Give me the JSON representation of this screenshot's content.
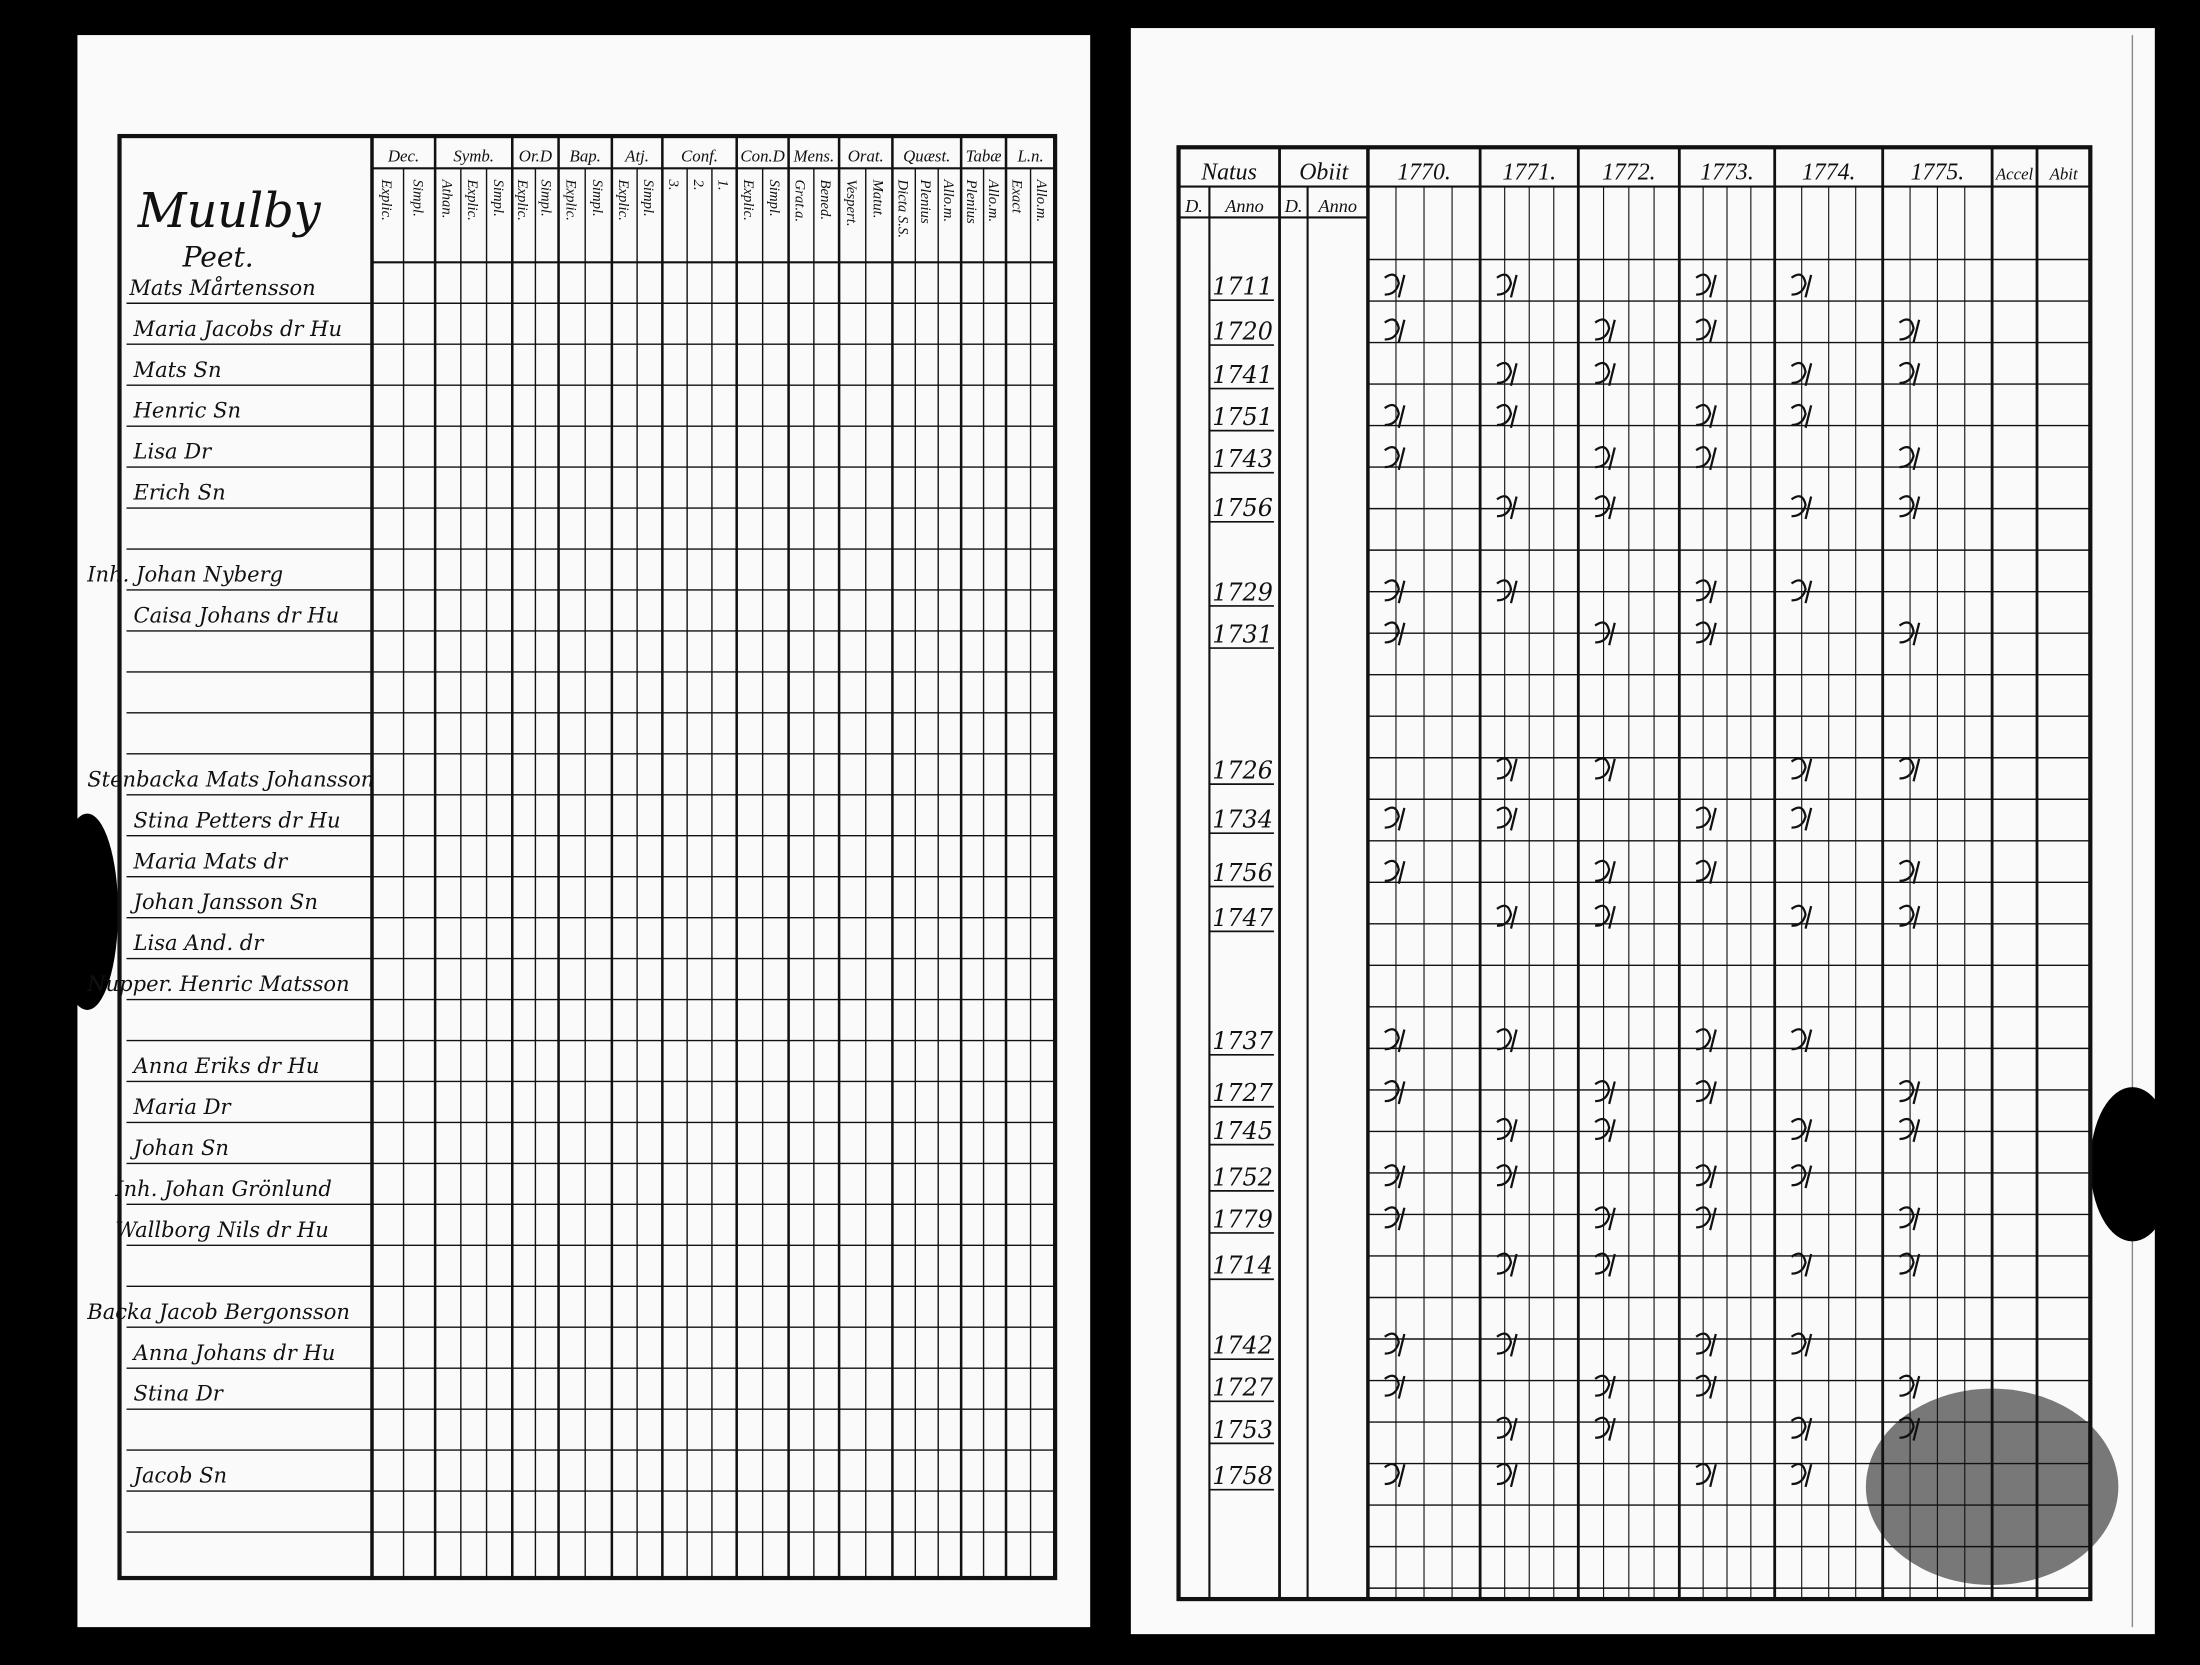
{
  "left_page": {
    "place": "Muulby",
    "village": "Peet.",
    "columns": [
      {
        "title": "Dec.",
        "sub": [
          "Explic.",
          "Simpl."
        ]
      },
      {
        "title": "Symb.",
        "sub": [
          "Athan.",
          "Explic.",
          "Simpl."
        ]
      },
      {
        "title": "Or.D",
        "sub": [
          "Explic.",
          "Simpl."
        ]
      },
      {
        "title": "Bap.",
        "sub": [
          "Explic.",
          "Simpl."
        ]
      },
      {
        "title": "Atj.",
        "sub": [
          "Explic.",
          "Simpl."
        ]
      },
      {
        "title": "Conf.",
        "sub": [
          "3.",
          "2.",
          "1."
        ]
      },
      {
        "title": "Con.D",
        "sub": [
          "Explic.",
          "Simpl."
        ]
      },
      {
        "title": "Mens.",
        "sub": [
          "Grat.a.",
          "Bened."
        ]
      },
      {
        "title": "Orat.",
        "sub": [
          "Vespert.",
          "Matut."
        ]
      },
      {
        "title": "Quæst.",
        "sub": [
          "Dicta S.S.",
          "Plenius",
          "Allo.m."
        ]
      },
      {
        "title": "Tabæ",
        "sub": [
          "Plenius",
          "Allo.m."
        ]
      },
      {
        "title": "L.n.",
        "sub": [
          "Exact",
          "Allo.m."
        ]
      }
    ],
    "names": [
      "Mats Mårtensson",
      "Maria Jacobs dr Hu",
      "Mats Sn",
      "Henric Sn",
      "Lisa Dr",
      "Erich Sn",
      "Inh. Johan Nyberg",
      "Caisa Johans dr Hu",
      "Stenbacka Mats Johansson",
      "Stina Petters dr Hu",
      "Maria Mats dr",
      "Johan Jansson Sn",
      "Lisa And. dr",
      "Nupper. Henric Matsson",
      "Anna Eriks dr Hu",
      "Maria Dr",
      "Johan Sn",
      "Inh. Johan Grönlund",
      "Wallborg Nils dr Hu",
      "Backa Jacob Bergonsson",
      "Anna Johans dr Hu",
      "Stina Dr",
      "Jacob Sn"
    ]
  },
  "right_page": {
    "columns": [
      "Natus",
      "Obiit",
      "1770.",
      "1771.",
      "1772.",
      "1773.",
      "1774.",
      "1775.",
      "Accel",
      "Abit"
    ],
    "sub_natus": [
      "D.",
      "Anno"
    ],
    "sub_obiit": [
      "D.",
      "Anno"
    ],
    "natus": [
      1711,
      1720,
      1741,
      1751,
      1743,
      1756,
      1729,
      1731,
      1726,
      1734,
      1756,
      1747,
      1737,
      1727,
      1745,
      1752,
      1779,
      1714,
      1742,
      1727,
      1753,
      1758
    ]
  }
}
